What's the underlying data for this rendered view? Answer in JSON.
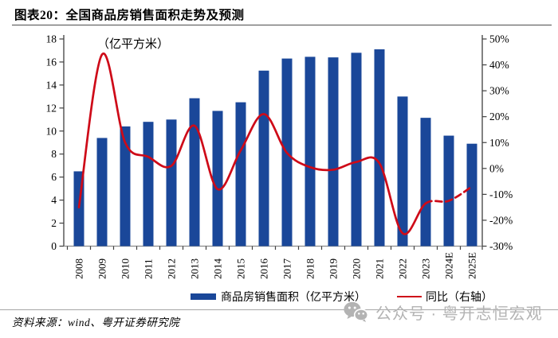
{
  "title": "图表20：全国商品房销售面积走势及预测",
  "axis_unit_label": "（亿平方米）",
  "legend": {
    "bar_label": "商品房销售面积（亿平方米）",
    "line_label": "同比（右轴）"
  },
  "watermark": {
    "icon": "wechat-icon",
    "text": "公众号 · 粤开志恒宏观"
  },
  "footer": {
    "source": "资料来源：wind、粤开证券研究院"
  },
  "colors": {
    "bar": "#1A4799",
    "line": "#CE0A18",
    "axis": "#404040",
    "x_axis_line": "#8c8c8c",
    "watermark": "#b3b3b3"
  },
  "chart_data": {
    "type": "bar+line",
    "title": "全国商品房销售面积走势及预测",
    "categories": [
      "2008",
      "2009",
      "2010",
      "2011",
      "2012",
      "2013",
      "2014",
      "2015",
      "2016",
      "2017",
      "2018",
      "2019",
      "2020",
      "2021",
      "2022",
      "2023",
      "2024E",
      "2025E"
    ],
    "series": [
      {
        "name": "商品房销售面积（亿平方米）",
        "type": "bar",
        "axis": "left",
        "values": [
          6.5,
          9.4,
          10.4,
          10.8,
          11.0,
          12.85,
          11.75,
          12.5,
          15.25,
          16.3,
          16.45,
          16.4,
          16.8,
          17.1,
          13.0,
          11.15,
          9.6,
          8.9
        ]
      },
      {
        "name": "同比（右轴）",
        "type": "line",
        "axis": "right",
        "unit": "percent",
        "values": [
          -15,
          44,
          10,
          4.5,
          1,
          16.5,
          -8,
          7,
          21,
          6,
          0.5,
          -0.5,
          2.5,
          2,
          -25,
          -13.5,
          -12.5,
          -7
        ],
        "dashed_from_category": "2023"
      }
    ],
    "left_axis": {
      "label": "（亿平方米）",
      "min": 0,
      "max": 18,
      "step": 2
    },
    "right_axis": {
      "min": -30,
      "max": 50,
      "step": 10,
      "format": "percent"
    },
    "grid": false,
    "legend_position": "bottom"
  }
}
